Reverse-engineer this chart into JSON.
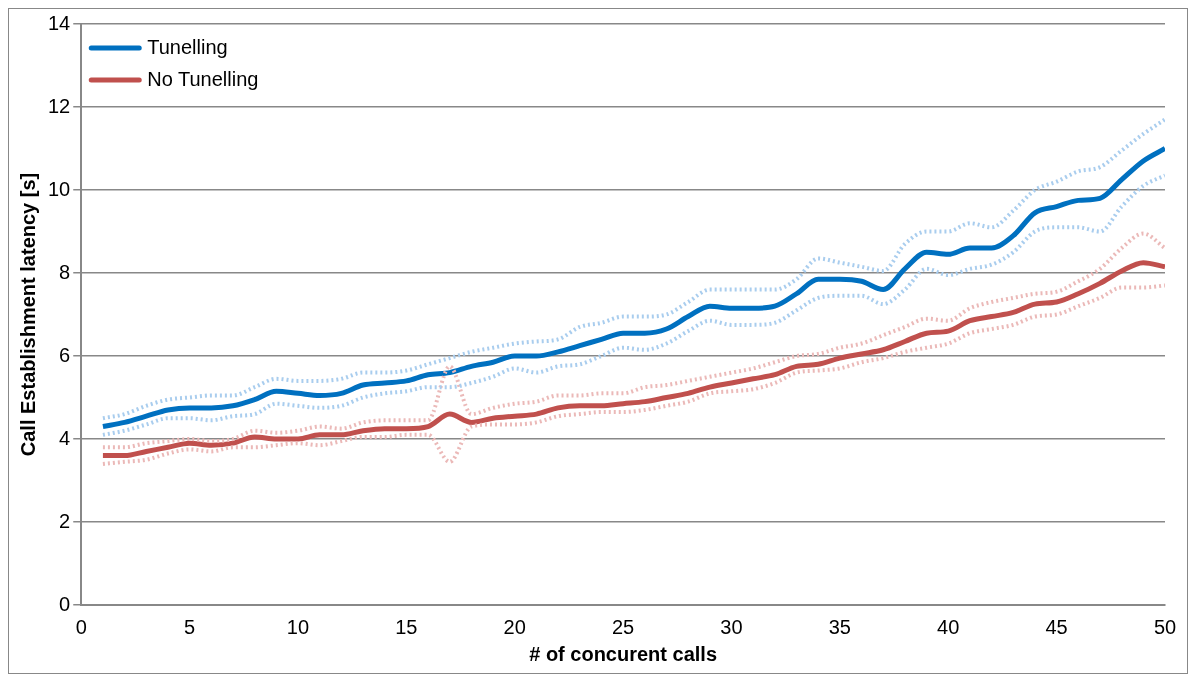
{
  "chart_data": {
    "type": "line",
    "xlabel": "# of concurent calls",
    "ylabel": "Call Establishment latency [s]",
    "x": [
      1,
      2,
      3,
      4,
      5,
      6,
      7,
      8,
      9,
      10,
      11,
      12,
      13,
      14,
      15,
      16,
      17,
      18,
      19,
      20,
      21,
      22,
      23,
      24,
      25,
      26,
      27,
      28,
      29,
      30,
      31,
      32,
      33,
      34,
      35,
      36,
      37,
      38,
      39,
      40,
      41,
      42,
      43,
      44,
      45,
      46,
      47,
      48,
      49,
      50
    ],
    "xlim": [
      0,
      50
    ],
    "xticks": [
      0,
      5,
      10,
      15,
      20,
      25,
      30,
      35,
      40,
      45,
      50
    ],
    "ylim": [
      0,
      14
    ],
    "yticks": [
      0,
      2,
      4,
      6,
      8,
      10,
      12,
      14
    ],
    "grid": "y",
    "legend": "top left",
    "marker": "none",
    "line_style": "solid",
    "series": [
      {
        "color": "#a9cdee",
        "line_style": "dotted",
        "values": [
          4.5,
          4.6,
          4.8,
          4.95,
          5.0,
          5.05,
          5.05,
          5.25,
          5.45,
          5.4,
          5.4,
          5.45,
          5.6,
          5.6,
          5.65,
          5.8,
          5.95,
          6.1,
          6.2,
          6.3,
          6.35,
          6.4,
          6.7,
          6.8,
          6.95,
          6.95,
          7.0,
          7.3,
          7.6,
          7.6,
          7.6,
          7.6,
          7.85,
          8.35,
          8.25,
          8.15,
          8.05,
          8.7,
          9.0,
          9.0,
          9.2,
          9.1,
          9.5,
          10.0,
          10.2,
          10.45,
          10.55,
          10.95,
          11.35,
          11.7
        ]
      },
      {
        "color": "#a9cdee",
        "line_style": "dotted",
        "values": [
          4.1,
          4.2,
          4.35,
          4.5,
          4.5,
          4.45,
          4.55,
          4.6,
          4.85,
          4.8,
          4.75,
          4.8,
          5.0,
          5.1,
          5.15,
          5.25,
          5.25,
          5.35,
          5.5,
          5.7,
          5.6,
          5.75,
          5.8,
          6.0,
          6.2,
          6.15,
          6.3,
          6.6,
          6.85,
          6.75,
          6.75,
          6.8,
          7.1,
          7.4,
          7.45,
          7.45,
          7.25,
          7.6,
          8.1,
          7.95,
          8.1,
          8.2,
          8.5,
          9.0,
          9.1,
          9.1,
          9.0,
          9.6,
          10.1,
          10.35
        ]
      },
      {
        "color": "#ebb9b8",
        "line_style": "dotted",
        "values": [
          3.8,
          3.8,
          3.9,
          3.95,
          4.0,
          3.95,
          4.0,
          4.2,
          4.15,
          4.2,
          4.3,
          4.25,
          4.4,
          4.45,
          4.45,
          4.45,
          5.75,
          4.6,
          4.75,
          4.85,
          4.9,
          5.05,
          5.05,
          5.1,
          5.1,
          5.25,
          5.3,
          5.4,
          5.5,
          5.6,
          5.7,
          5.85,
          6.0,
          6.05,
          6.2,
          6.3,
          6.5,
          6.7,
          6.9,
          6.85,
          7.15,
          7.3,
          7.4,
          7.5,
          7.55,
          7.8,
          8.1,
          8.6,
          8.95,
          8.6
        ]
      },
      {
        "color": "#ebb9b8",
        "line_style": "dotted",
        "values": [
          3.4,
          3.45,
          3.5,
          3.65,
          3.75,
          3.7,
          3.8,
          3.8,
          3.85,
          3.9,
          3.85,
          3.95,
          4.05,
          4.05,
          4.1,
          4.1,
          3.45,
          4.3,
          4.35,
          4.35,
          4.4,
          4.55,
          4.6,
          4.65,
          4.65,
          4.7,
          4.8,
          4.9,
          5.1,
          5.15,
          5.2,
          5.35,
          5.6,
          5.65,
          5.7,
          5.85,
          5.95,
          6.1,
          6.2,
          6.3,
          6.55,
          6.65,
          6.75,
          6.95,
          7.0,
          7.2,
          7.4,
          7.65,
          7.65,
          7.7
        ]
      },
      {
        "name": "Tunelling",
        "color": "#0070c0",
        "values": [
          4.3,
          4.4,
          4.55,
          4.7,
          4.75,
          4.75,
          4.8,
          4.95,
          5.15,
          5.1,
          5.05,
          5.1,
          5.3,
          5.35,
          5.4,
          5.55,
          5.6,
          5.75,
          5.85,
          6.0,
          6.0,
          6.1,
          6.25,
          6.4,
          6.55,
          6.55,
          6.65,
          6.95,
          7.2,
          7.15,
          7.15,
          7.2,
          7.5,
          7.85,
          7.85,
          7.8,
          7.6,
          8.1,
          8.5,
          8.45,
          8.6,
          8.6,
          8.9,
          9.45,
          9.6,
          9.75,
          9.8,
          10.25,
          10.7,
          11.0
        ]
      },
      {
        "name": "No Tunelling",
        "color": "#c0504d",
        "values": [
          3.6,
          3.6,
          3.7,
          3.8,
          3.9,
          3.85,
          3.9,
          4.05,
          4.0,
          4.0,
          4.1,
          4.1,
          4.2,
          4.25,
          4.25,
          4.3,
          4.6,
          4.4,
          4.5,
          4.55,
          4.6,
          4.75,
          4.8,
          4.8,
          4.85,
          4.9,
          5.0,
          5.1,
          5.25,
          5.35,
          5.45,
          5.55,
          5.75,
          5.8,
          5.95,
          6.05,
          6.15,
          6.35,
          6.55,
          6.6,
          6.85,
          6.95,
          7.05,
          7.25,
          7.3,
          7.5,
          7.75,
          8.05,
          8.25,
          8.15
        ]
      }
    ]
  }
}
